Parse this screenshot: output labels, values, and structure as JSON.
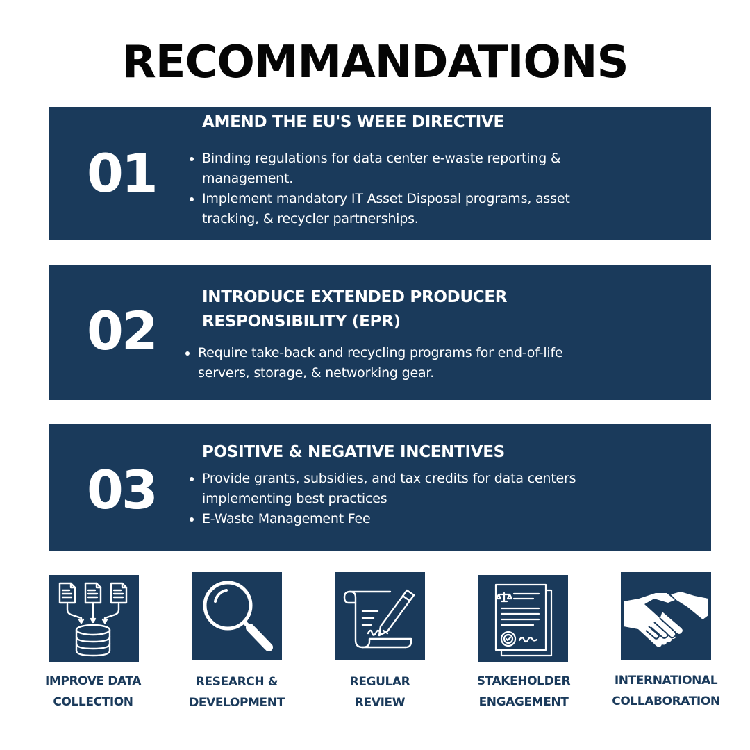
{
  "title": "RECOMMANDATIONS",
  "recommendations": [
    {
      "number": "01",
      "heading_lines": [
        "AMEND THE EU'S WEEE DIRECTIVE"
      ],
      "bullets": [
        [
          "Binding regulations for data center e-waste reporting &",
          "management."
        ],
        [
          "Implement mandatory IT Asset Disposal programs, asset",
          "tracking, & recycler partnerships."
        ]
      ]
    },
    {
      "number": "02",
      "heading_lines": [
        "INTRODUCE EXTENDED PRODUCER",
        "RESPONSIBILITY (EPR)"
      ],
      "bullets": [
        [
          "Require take-back and recycling programs for end-of-life",
          "servers, storage, & networking gear."
        ]
      ]
    },
    {
      "number": "03",
      "heading_lines": [
        "POSITIVE & NEGATIVE INCENTIVES"
      ],
      "bullets": [
        [
          "Provide grants, subsidies, and tax credits for data centers",
          "implementing best practices"
        ],
        [
          "E-Waste Management Fee"
        ]
      ]
    }
  ],
  "actions": [
    {
      "icon": "database-documents-icon",
      "label_lines": [
        "IMPROVE DATA",
        "COLLECTION"
      ]
    },
    {
      "icon": "magnifying-glass-icon",
      "label_lines": [
        "RESEARCH &",
        "DEVELOPMENT"
      ]
    },
    {
      "icon": "scroll-pen-icon",
      "label_lines": [
        "REGULAR",
        "REVIEW"
      ]
    },
    {
      "icon": "legal-document-icon",
      "label_lines": [
        "STAKEHOLDER",
        "ENGAGEMENT"
      ]
    },
    {
      "icon": "handshake-icon",
      "label_lines": [
        "INTERNATIONAL",
        "COLLABORATION"
      ]
    }
  ],
  "colors": {
    "navy": "#1a3a5b",
    "title": "#050505",
    "background": "#ffffff"
  }
}
